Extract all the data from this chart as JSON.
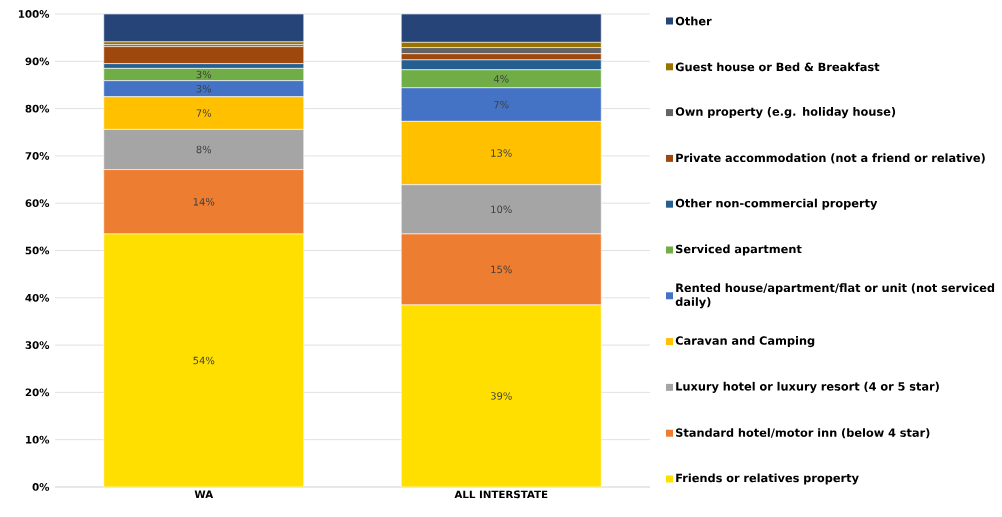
{
  "chart_data": {
    "type": "bar",
    "stacked": true,
    "categories": [
      "WA",
      "ALL INTERSTATE"
    ],
    "ylim": [
      0,
      100
    ],
    "yticks": [
      {
        "value": 0,
        "label": "0%"
      },
      {
        "value": 10,
        "label": "10%"
      },
      {
        "value": 20,
        "label": "20%"
      },
      {
        "value": 30,
        "label": "30%"
      },
      {
        "value": 40,
        "label": "40%"
      },
      {
        "value": 50,
        "label": "50%"
      },
      {
        "value": 60,
        "label": "60%"
      },
      {
        "value": 70,
        "label": "70%"
      },
      {
        "value": 80,
        "label": "80%"
      },
      {
        "value": 90,
        "label": "90%"
      },
      {
        "value": 100,
        "label": "100%"
      }
    ],
    "grid": "y",
    "legend": "right",
    "series": [
      {
        "name": "Friends or relatives property",
        "color": "#ffdf00",
        "values": [
          53.5,
          38.5
        ],
        "value_labels": [
          "54%",
          "39%"
        ]
      },
      {
        "name": "Standard hotel/motor inn (below 4 star)",
        "color": "#ed7d31",
        "values": [
          13.6,
          15.0
        ],
        "value_labels": [
          "14%",
          "15%"
        ]
      },
      {
        "name": "Luxury hotel or luxury resort (4 or 5 star)",
        "color": "#a5a5a5",
        "values": [
          8.5,
          10.4
        ],
        "value_labels": [
          "8%",
          "10%"
        ]
      },
      {
        "name": "Caravan and Camping",
        "color": "#ffc000",
        "values": [
          6.9,
          13.4
        ],
        "value_labels": [
          "7%",
          "13%"
        ]
      },
      {
        "name": "Rented house/apartment/flat or unit (not serviced daily)",
        "color": "#4472c4",
        "values": [
          3.4,
          7.1
        ],
        "value_labels": [
          "3%",
          "7%"
        ]
      },
      {
        "name": "Serviced apartment",
        "color": "#70ad47",
        "values": [
          2.6,
          3.8
        ],
        "value_labels": [
          "3%",
          "4%"
        ]
      },
      {
        "name": "Other non-commercial property",
        "color": "#255e91",
        "values": [
          1.0,
          2.1
        ]
      },
      {
        "name": "Private accommodation (not a friend or relative)",
        "color": "#9e480e",
        "values": [
          3.6,
          1.3
        ]
      },
      {
        "name": "Own property (e.g. holiday house)",
        "color": "#636363",
        "values": [
          0.4,
          1.3
        ]
      },
      {
        "name": "Guest house or Bed & Breakfast",
        "color": "#997300",
        "values": [
          0.6,
          1.1
        ]
      },
      {
        "name": "Other",
        "color": "#264478",
        "values": [
          5.9,
          6.0
        ]
      }
    ]
  }
}
